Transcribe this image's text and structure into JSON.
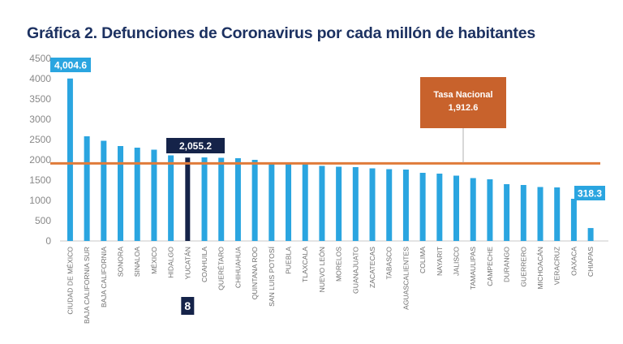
{
  "chart_data": {
    "type": "bar",
    "title": "Gráfica 2. Defunciones de Coronavirus por cada millón de habitantes",
    "xlabel": "",
    "ylabel": "",
    "ylim": [
      0,
      4500
    ],
    "yticks": [
      "0",
      "500",
      "1000",
      "1500",
      "2000",
      "2500",
      "3000",
      "3500",
      "4000",
      "4500"
    ],
    "categories": [
      "CIUDAD DE MÉXICO",
      "BAJA CALIFORNIA SUR",
      "BAJA CALIFORNIA",
      "SONORA",
      "SINALOA",
      "MÉXICO",
      "HIDALGO",
      "YUCATÁN",
      "COAHUILA",
      "QUERÉTARO",
      "CHIHUAHUA",
      "QUINTANA ROO",
      "SAN LUIS POTOSÍ",
      "PUEBLA",
      "TLAXCALA",
      "NUEVO LEÓN",
      "MORELOS",
      "GUANAJUATO",
      "ZACATECAS",
      "TABASCO",
      "AGUASCALIENTES",
      "COLIMA",
      "NAYARIT",
      "JALISCO",
      "TAMAULIPAS",
      "CAMPECHE",
      "DURANGO",
      "GUERRERO",
      "MICHOACÁN",
      "VERACRUZ",
      "OAXACA",
      "CHIAPAS"
    ],
    "values": [
      4004.6,
      2580,
      2470,
      2340,
      2300,
      2250,
      2110,
      2055.2,
      2060,
      2050,
      2040,
      2000,
      1910,
      1900,
      1890,
      1850,
      1830,
      1820,
      1790,
      1770,
      1760,
      1680,
      1660,
      1610,
      1550,
      1520,
      1400,
      1380,
      1330,
      1320,
      1040,
      318.3
    ],
    "highlight_index": 7,
    "highlight_rank": "8",
    "reference_line": {
      "label": "Tasa Nacional",
      "value_label": "1,912.6",
      "value": 1912.6
    },
    "data_labels": [
      {
        "index": 0,
        "text": "4,004.6"
      },
      {
        "index": 7,
        "text": "2,055.2"
      },
      {
        "index": 31,
        "text": "318.3"
      }
    ],
    "colors": {
      "bar": "#2aa5e0",
      "highlight": "#152349",
      "line": "#e07b3a",
      "callout": "#c8622c",
      "title": "#1c3161"
    },
    "grid": false,
    "legend": "none"
  }
}
